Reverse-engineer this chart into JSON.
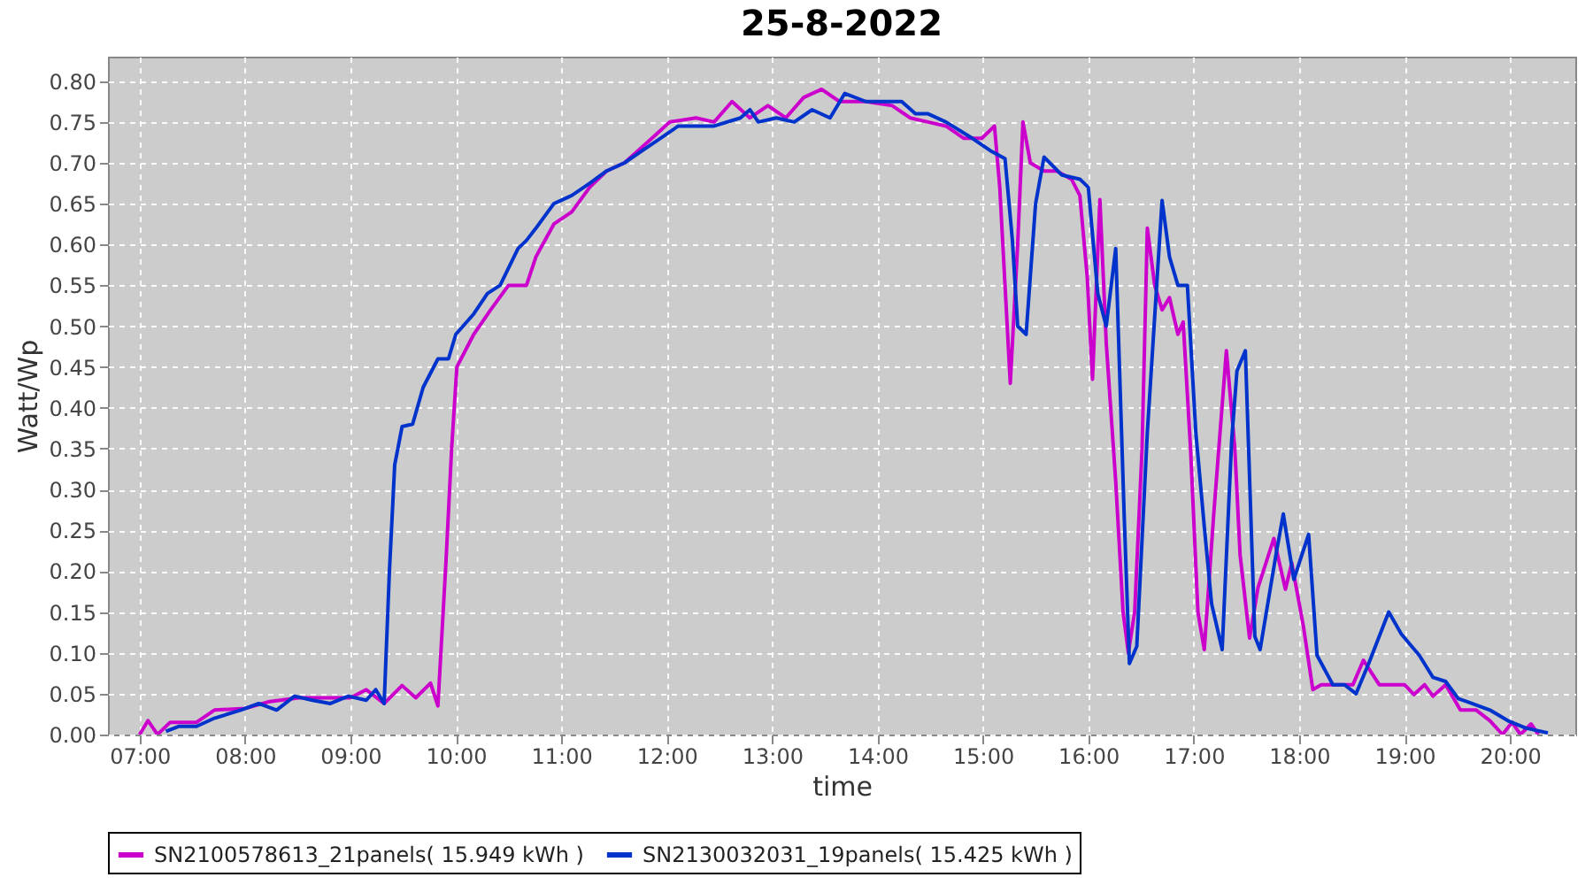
{
  "chart_data": {
    "type": "line",
    "title": "25-8-2022",
    "xlabel": "time",
    "ylabel": "Watt/Wp",
    "xlim": [
      6.7,
      20.62
    ],
    "ylim": [
      0,
      0.83
    ],
    "xticks": [
      {
        "value": 7,
        "label": "07:00"
      },
      {
        "value": 8,
        "label": "08:00"
      },
      {
        "value": 9,
        "label": "09:00"
      },
      {
        "value": 10,
        "label": "10:00"
      },
      {
        "value": 11,
        "label": "11:00"
      },
      {
        "value": 12,
        "label": "12:00"
      },
      {
        "value": 13,
        "label": "13:00"
      },
      {
        "value": 14,
        "label": "14:00"
      },
      {
        "value": 15,
        "label": "15:00"
      },
      {
        "value": 16,
        "label": "16:00"
      },
      {
        "value": 17,
        "label": "17:00"
      },
      {
        "value": 18,
        "label": "18:00"
      },
      {
        "value": 19,
        "label": "19:00"
      },
      {
        "value": 20,
        "label": "20:00"
      }
    ],
    "yticks": [
      {
        "value": 0,
        "label": "0.00"
      },
      {
        "value": 0.05,
        "label": "0.05"
      },
      {
        "value": 0.1,
        "label": "0.10"
      },
      {
        "value": 0.15,
        "label": "0.15"
      },
      {
        "value": 0.2,
        "label": "0.20"
      },
      {
        "value": 0.25,
        "label": "0.25"
      },
      {
        "value": 0.3,
        "label": "0.30"
      },
      {
        "value": 0.35,
        "label": "0.35"
      },
      {
        "value": 0.4,
        "label": "0.40"
      },
      {
        "value": 0.45,
        "label": "0.45"
      },
      {
        "value": 0.5,
        "label": "0.50"
      },
      {
        "value": 0.55,
        "label": "0.55"
      },
      {
        "value": 0.6,
        "label": "0.60"
      },
      {
        "value": 0.65,
        "label": "0.65"
      },
      {
        "value": 0.7,
        "label": "0.70"
      },
      {
        "value": 0.75,
        "label": "0.75"
      },
      {
        "value": 0.8,
        "label": "0.80"
      }
    ],
    "grid": true,
    "legend": "bottom",
    "marker": "none",
    "line_style": "solid",
    "series": [
      {
        "name": "SN2100578613_21panels( 15.949 kWh )",
        "color": "#cc00cc",
        "x": [
          7.0,
          7.08,
          7.17,
          7.29,
          7.54,
          7.71,
          8.0,
          8.22,
          8.51,
          9.0,
          9.15,
          9.32,
          9.49,
          9.62,
          9.76,
          9.83,
          9.91,
          9.96,
          10.01,
          10.17,
          10.33,
          10.5,
          10.67,
          10.76,
          10.93,
          11.1,
          11.27,
          11.43,
          11.6,
          11.86,
          12.03,
          12.28,
          12.45,
          12.62,
          12.79,
          12.96,
          13.13,
          13.3,
          13.47,
          13.64,
          13.89,
          14.14,
          14.31,
          14.48,
          14.65,
          14.82,
          14.99,
          15.11,
          15.16,
          15.21,
          15.26,
          15.33,
          15.38,
          15.45,
          15.58,
          15.7,
          15.84,
          15.92,
          15.99,
          16.04,
          16.11,
          16.17,
          16.26,
          16.33,
          16.38,
          16.44,
          16.51,
          16.56,
          16.63,
          16.7,
          16.77,
          16.85,
          16.9,
          16.97,
          17.04,
          17.1,
          17.19,
          17.31,
          17.39,
          17.44,
          17.53,
          17.61,
          17.76,
          17.87,
          17.93,
          18.04,
          18.13,
          18.21,
          18.51,
          18.61,
          18.76,
          19.0,
          19.09,
          19.19,
          19.27,
          19.39,
          19.53,
          19.68,
          19.81,
          19.93,
          20.02,
          20.1,
          20.2,
          20.27
        ],
        "values": [
          0,
          0.017,
          0,
          0.015,
          0.015,
          0.03,
          0.032,
          0.04,
          0.045,
          0.045,
          0.055,
          0.038,
          0.06,
          0.045,
          0.063,
          0.035,
          0.22,
          0.35,
          0.45,
          0.49,
          0.52,
          0.55,
          0.55,
          0.585,
          0.625,
          0.64,
          0.67,
          0.69,
          0.7,
          0.73,
          0.75,
          0.755,
          0.75,
          0.775,
          0.755,
          0.77,
          0.755,
          0.78,
          0.79,
          0.775,
          0.775,
          0.77,
          0.755,
          0.75,
          0.745,
          0.73,
          0.73,
          0.745,
          0.67,
          0.55,
          0.43,
          0.6,
          0.75,
          0.7,
          0.69,
          0.69,
          0.68,
          0.66,
          0.56,
          0.435,
          0.655,
          0.48,
          0.31,
          0.15,
          0.1,
          0.15,
          0.35,
          0.62,
          0.55,
          0.52,
          0.535,
          0.49,
          0.505,
          0.35,
          0.15,
          0.104,
          0.27,
          0.47,
          0.35,
          0.22,
          0.118,
          0.18,
          0.24,
          0.178,
          0.21,
          0.133,
          0.055,
          0.061,
          0.061,
          0.091,
          0.061,
          0.061,
          0.049,
          0.061,
          0.047,
          0.061,
          0.03,
          0.03,
          0.017,
          0,
          0.015,
          0,
          0.013,
          0
        ]
      },
      {
        "name": "SN2130032031_19panels( 15.425 kWh )",
        "color": "#0033cc",
        "x": [
          7.25,
          7.37,
          7.54,
          7.71,
          7.96,
          8.13,
          8.3,
          8.47,
          8.64,
          8.81,
          8.98,
          9.15,
          9.24,
          9.32,
          9.37,
          9.42,
          9.49,
          9.59,
          9.69,
          9.83,
          9.93,
          10.0,
          10.17,
          10.3,
          10.42,
          10.59,
          10.67,
          10.76,
          10.93,
          11.1,
          11.27,
          11.43,
          11.6,
          11.77,
          11.94,
          12.11,
          12.45,
          12.7,
          12.79,
          12.87,
          13.04,
          13.21,
          13.38,
          13.55,
          13.69,
          13.89,
          14.23,
          14.36,
          14.48,
          14.65,
          14.9,
          15.07,
          15.21,
          15.28,
          15.33,
          15.41,
          15.5,
          15.58,
          15.75,
          15.92,
          16.0,
          16.09,
          16.17,
          16.26,
          16.34,
          16.39,
          16.46,
          16.56,
          16.7,
          16.77,
          16.85,
          16.94,
          17.02,
          17.1,
          17.17,
          17.27,
          17.36,
          17.41,
          17.49,
          17.58,
          17.63,
          17.78,
          17.85,
          17.95,
          18.09,
          18.17,
          18.32,
          18.43,
          18.54,
          18.66,
          18.85,
          18.97,
          19.14,
          19.27,
          19.39,
          19.51,
          19.64,
          19.81,
          19.98,
          20.15,
          20.36
        ],
        "values": [
          0.004,
          0.01,
          0.01,
          0.02,
          0.03,
          0.038,
          0.03,
          0.047,
          0.042,
          0.038,
          0.047,
          0.042,
          0.055,
          0.038,
          0.2,
          0.33,
          0.377,
          0.38,
          0.425,
          0.46,
          0.46,
          0.49,
          0.515,
          0.54,
          0.55,
          0.595,
          0.605,
          0.62,
          0.65,
          0.66,
          0.675,
          0.69,
          0.7,
          0.715,
          0.73,
          0.745,
          0.745,
          0.755,
          0.765,
          0.75,
          0.755,
          0.75,
          0.765,
          0.755,
          0.785,
          0.775,
          0.775,
          0.76,
          0.76,
          0.75,
          0.73,
          0.715,
          0.705,
          0.605,
          0.5,
          0.49,
          0.65,
          0.707,
          0.685,
          0.68,
          0.67,
          0.54,
          0.5,
          0.595,
          0.27,
          0.087,
          0.108,
          0.37,
          0.654,
          0.585,
          0.55,
          0.55,
          0.37,
          0.255,
          0.16,
          0.104,
          0.36,
          0.445,
          0.47,
          0.12,
          0.104,
          0.22,
          0.27,
          0.19,
          0.245,
          0.097,
          0.061,
          0.061,
          0.05,
          0.087,
          0.15,
          0.123,
          0.097,
          0.07,
          0.065,
          0.044,
          0.038,
          0.03,
          0.017,
          0.008,
          0.002
        ]
      }
    ]
  }
}
